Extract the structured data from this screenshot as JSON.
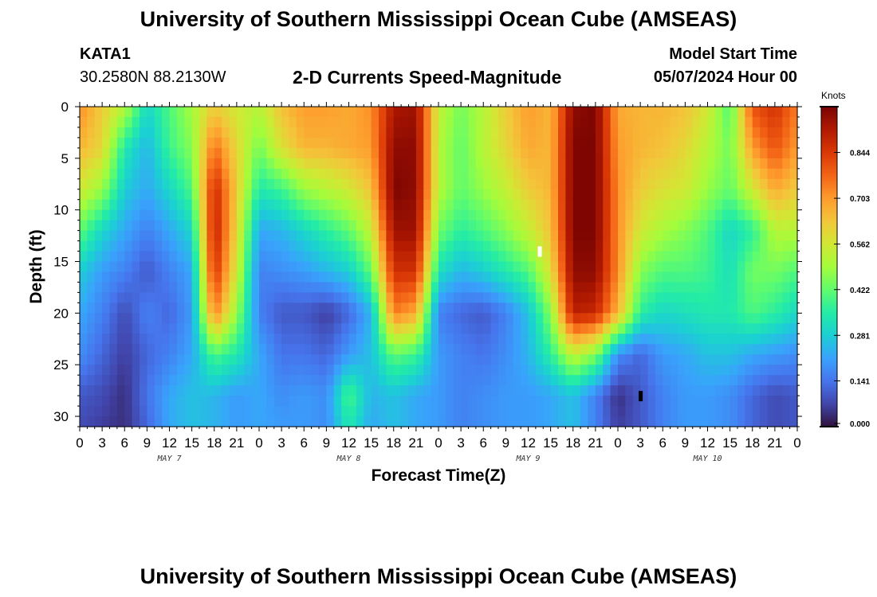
{
  "header": {
    "title": "University of Southern Mississippi Ocean Cube (AMSEAS)",
    "station_id": "KATA1",
    "coords": "30.2580N  88.2130W",
    "product": "2-D Currents Speed-Magnitude",
    "model_start_label": "Model Start Time",
    "model_start_value": "05/07/2024 Hour 00"
  },
  "footer": {
    "title": "University of Southern Mississippi Ocean Cube (AMSEAS)"
  },
  "colors": {
    "ramp": [
      "#30123b",
      "#4145ab",
      "#4675ed",
      "#39a2fc",
      "#1bcfd4",
      "#24eca6",
      "#61fc6c",
      "#a4fc3b",
      "#d1e834",
      "#f3c63a",
      "#fe9b2d",
      "#f36315",
      "#d93806",
      "#b11901",
      "#7a0402"
    ],
    "marker_white": "#ffffff",
    "marker_black": "#000000"
  },
  "chart_data": {
    "type": "heatmap",
    "title": "2-D Currents Speed-Magnitude",
    "xlabel": "Forecast Time(Z)",
    "ylabel": "Depth (ft)",
    "x_unit": "hours since 05/07/2024 00Z",
    "xlim": [
      0,
      96
    ],
    "ylim": [
      0,
      31
    ],
    "y_inverted": true,
    "x_tick_labels": [
      "0",
      "3",
      "6",
      "9",
      "12",
      "15",
      "18",
      "21",
      "0",
      "3",
      "6",
      "9",
      "12",
      "15",
      "18",
      "21",
      "0",
      "3",
      "6",
      "9",
      "12",
      "15",
      "18",
      "21",
      "0",
      "3",
      "6",
      "9",
      "12",
      "15",
      "18",
      "21",
      "0"
    ],
    "y_ticks": [
      0,
      5,
      10,
      15,
      20,
      25,
      30
    ],
    "y_tick_labels": [
      "0",
      "5",
      "10",
      "15",
      "20",
      "25",
      "30"
    ],
    "day_labels": [
      {
        "label": "MAY 7",
        "hour": 12
      },
      {
        "label": "MAY 8",
        "hour": 36
      },
      {
        "label": "MAY 9",
        "hour": 60
      },
      {
        "label": "MAY 10",
        "hour": 84
      }
    ],
    "colorbar": {
      "unit": "Knots",
      "min": 0.0,
      "max": 0.985,
      "ticks": [
        0.0,
        0.141,
        0.281,
        0.422,
        0.562,
        0.703,
        0.844
      ],
      "tick_labels": [
        "0.000",
        "0.141",
        "0.281",
        "0.422",
        "0.562",
        "0.703",
        "0.844"
      ]
    },
    "speed_knots": {
      "note": "Estimated current speed (knots); rows = depth levels, columns = forecast hours",
      "depths_ft": [
        0,
        4,
        8,
        12,
        16,
        20,
        24,
        28,
        31
      ],
      "hours": [
        0,
        3,
        6,
        9,
        12,
        15,
        18,
        21,
        24,
        27,
        30,
        33,
        36,
        39,
        42,
        45,
        48,
        51,
        54,
        57,
        60,
        63,
        66,
        69,
        72,
        75,
        78,
        81,
        84,
        87,
        90,
        93,
        96
      ],
      "rows": [
        [
          0.72,
          0.62,
          0.52,
          0.3,
          0.4,
          0.5,
          0.62,
          0.56,
          0.52,
          0.64,
          0.7,
          0.7,
          0.68,
          0.72,
          0.92,
          0.94,
          0.54,
          0.44,
          0.52,
          0.62,
          0.7,
          0.66,
          0.96,
          0.98,
          0.68,
          0.66,
          0.66,
          0.64,
          0.56,
          0.4,
          0.8,
          0.86,
          0.74
        ],
        [
          0.66,
          0.6,
          0.34,
          0.24,
          0.38,
          0.46,
          0.76,
          0.6,
          0.44,
          0.58,
          0.66,
          0.66,
          0.68,
          0.7,
          0.96,
          0.96,
          0.52,
          0.42,
          0.52,
          0.6,
          0.68,
          0.66,
          0.98,
          0.98,
          0.7,
          0.66,
          0.64,
          0.6,
          0.52,
          0.44,
          0.7,
          0.8,
          0.7
        ],
        [
          0.56,
          0.48,
          0.28,
          0.22,
          0.3,
          0.4,
          0.88,
          0.62,
          0.34,
          0.38,
          0.48,
          0.52,
          0.56,
          0.64,
          0.98,
          0.96,
          0.52,
          0.42,
          0.48,
          0.54,
          0.62,
          0.66,
          0.98,
          0.98,
          0.72,
          0.62,
          0.58,
          0.56,
          0.48,
          0.42,
          0.56,
          0.68,
          0.62
        ],
        [
          0.42,
          0.3,
          0.22,
          0.16,
          0.22,
          0.3,
          0.9,
          0.6,
          0.22,
          0.24,
          0.3,
          0.36,
          0.42,
          0.54,
          0.94,
          0.94,
          0.44,
          0.36,
          0.4,
          0.46,
          0.54,
          0.64,
          0.98,
          0.98,
          0.72,
          0.56,
          0.5,
          0.46,
          0.4,
          0.3,
          0.36,
          0.52,
          0.52
        ],
        [
          0.28,
          0.2,
          0.16,
          0.1,
          0.16,
          0.22,
          0.86,
          0.56,
          0.16,
          0.18,
          0.2,
          0.24,
          0.28,
          0.42,
          0.86,
          0.86,
          0.32,
          0.24,
          0.28,
          0.34,
          0.4,
          0.58,
          0.96,
          0.96,
          0.72,
          0.46,
          0.4,
          0.4,
          0.38,
          0.32,
          0.44,
          0.44,
          0.4
        ],
        [
          0.22,
          0.16,
          0.08,
          0.16,
          0.12,
          0.2,
          0.74,
          0.48,
          0.16,
          0.1,
          0.1,
          0.06,
          0.12,
          0.24,
          0.74,
          0.68,
          0.16,
          0.12,
          0.1,
          0.16,
          0.26,
          0.46,
          0.9,
          0.88,
          0.66,
          0.36,
          0.3,
          0.32,
          0.34,
          0.34,
          0.4,
          0.36,
          0.3
        ],
        [
          0.18,
          0.12,
          0.06,
          0.12,
          0.16,
          0.22,
          0.4,
          0.34,
          0.22,
          0.14,
          0.14,
          0.12,
          0.2,
          0.26,
          0.42,
          0.38,
          0.2,
          0.16,
          0.14,
          0.18,
          0.24,
          0.36,
          0.54,
          0.46,
          0.18,
          0.12,
          0.2,
          0.22,
          0.26,
          0.26,
          0.22,
          0.2,
          0.18
        ],
        [
          0.1,
          0.08,
          0.04,
          0.14,
          0.22,
          0.26,
          0.24,
          0.2,
          0.22,
          0.18,
          0.2,
          0.18,
          0.4,
          0.24,
          0.26,
          0.22,
          0.2,
          0.16,
          0.18,
          0.2,
          0.2,
          0.22,
          0.26,
          0.16,
          0.04,
          0.1,
          0.16,
          0.2,
          0.2,
          0.18,
          0.12,
          0.08,
          0.1
        ],
        [
          0.08,
          0.06,
          0.04,
          0.12,
          0.22,
          0.26,
          0.24,
          0.2,
          0.22,
          0.2,
          0.2,
          0.18,
          0.34,
          0.22,
          0.26,
          0.22,
          0.2,
          0.16,
          0.18,
          0.2,
          0.2,
          0.22,
          0.26,
          0.16,
          0.06,
          0.1,
          0.16,
          0.2,
          0.2,
          0.18,
          0.12,
          0.08,
          0.1
        ]
      ]
    },
    "markers": [
      {
        "hour": 61.5,
        "depth_ft": 14.0,
        "color": "white"
      },
      {
        "hour": 75.0,
        "depth_ft": 28.0,
        "color": "black"
      }
    ]
  }
}
